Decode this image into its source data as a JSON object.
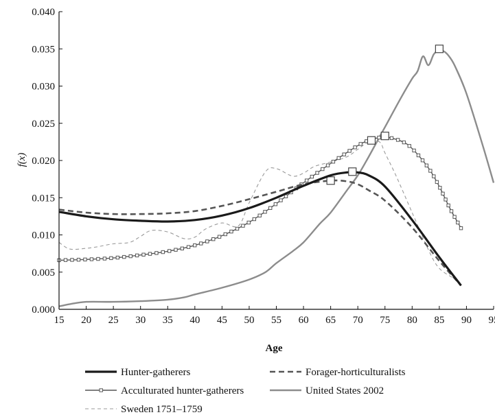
{
  "chart_data": {
    "type": "line",
    "title": "",
    "xlabel": "Age",
    "ylabel": "f(x)",
    "xlim": [
      15,
      95
    ],
    "ylim": [
      0,
      0.04
    ],
    "x_ticks": [
      "15",
      "20",
      "25",
      "30",
      "35",
      "40",
      "45",
      "50",
      "55",
      "60",
      "65",
      "70",
      "75",
      "80",
      "85",
      "90",
      "95"
    ],
    "y_ticks": [
      "0.000",
      "0.005",
      "0.010",
      "0.015",
      "0.020",
      "0.025",
      "0.030",
      "0.035",
      "0.040"
    ],
    "grid": false,
    "legend_position": "bottom",
    "series": [
      {
        "name": "Hunter-gatherers",
        "style": "solid-thick",
        "color": "#1a1a1a",
        "x": [
          15,
          20,
          25,
          30,
          35,
          40,
          45,
          50,
          55,
          60,
          65,
          68,
          70,
          72,
          75,
          80,
          85,
          89
        ],
        "y": [
          0.0131,
          0.0125,
          0.0121,
          0.0119,
          0.0118,
          0.012,
          0.0126,
          0.0136,
          0.015,
          0.0166,
          0.018,
          0.0184,
          0.0184,
          0.018,
          0.0165,
          0.012,
          0.007,
          0.0032
        ],
        "markers_x": [
          69
        ],
        "markers_y": [
          0.0185
        ]
      },
      {
        "name": "Forager-horticulturalists",
        "style": "dashed",
        "color": "#555555",
        "x": [
          15,
          20,
          25,
          30,
          35,
          40,
          45,
          50,
          55,
          60,
          65,
          68,
          70,
          72,
          75,
          80,
          85,
          89
        ],
        "y": [
          0.0134,
          0.013,
          0.0128,
          0.0128,
          0.0129,
          0.0132,
          0.0139,
          0.0148,
          0.0158,
          0.0168,
          0.0173,
          0.0172,
          0.0168,
          0.016,
          0.0146,
          0.011,
          0.0065,
          0.0032
        ],
        "markers_x": [
          65
        ],
        "markers_y": [
          0.0173
        ]
      },
      {
        "name": "Acculturated hunter-gatherers",
        "style": "square-markers",
        "color": "#555555",
        "x": [
          15,
          20,
          25,
          30,
          35,
          40,
          45,
          50,
          55,
          60,
          65,
          70,
          72,
          74,
          75,
          78,
          80,
          83,
          85,
          87,
          89
        ],
        "y": [
          0.0066,
          0.0067,
          0.0069,
          0.0073,
          0.0078,
          0.0086,
          0.0099,
          0.0117,
          0.0142,
          0.017,
          0.0196,
          0.022,
          0.0227,
          0.0231,
          0.0232,
          0.0226,
          0.0216,
          0.019,
          0.0165,
          0.0135,
          0.0109
        ],
        "markers_x": [
          72.5,
          75
        ],
        "markers_y": [
          0.0227,
          0.0233
        ]
      },
      {
        "name": "United States 2002",
        "style": "solid-gray",
        "color": "#8c8c8c",
        "x": [
          15,
          17,
          20,
          25,
          30,
          35,
          38,
          40,
          45,
          50,
          53,
          55,
          58,
          60,
          63,
          65,
          68,
          70,
          72,
          75,
          78,
          80,
          81,
          82,
          83,
          84,
          85,
          86,
          87,
          88,
          90,
          93,
          95
        ],
        "y": [
          0.0004,
          0.0007,
          0.001,
          0.001,
          0.0011,
          0.0013,
          0.0016,
          0.002,
          0.0029,
          0.004,
          0.005,
          0.0062,
          0.0078,
          0.009,
          0.0115,
          0.013,
          0.016,
          0.018,
          0.0205,
          0.0245,
          0.0285,
          0.031,
          0.032,
          0.034,
          0.0328,
          0.0343,
          0.0348,
          0.0346,
          0.0338,
          0.0325,
          0.029,
          0.022,
          0.017
        ],
        "markers_x": [
          85
        ],
        "markers_y": [
          0.035
        ]
      },
      {
        "name": "Sweden 1751–1759",
        "style": "thin-dashed",
        "color": "#9a9a9a",
        "x": [
          15,
          17,
          20,
          22,
          25,
          28,
          30,
          32,
          35,
          38,
          40,
          42,
          45,
          48,
          50,
          53,
          55,
          58,
          60,
          62,
          65,
          68,
          70,
          72,
          74,
          75,
          77,
          80,
          83,
          85,
          88,
          89
        ],
        "y": [
          0.009,
          0.0081,
          0.0082,
          0.0084,
          0.0088,
          0.009,
          0.0098,
          0.0106,
          0.0104,
          0.0095,
          0.0097,
          0.0108,
          0.0116,
          0.0112,
          0.0143,
          0.0185,
          0.0189,
          0.0179,
          0.0183,
          0.0192,
          0.0198,
          0.0205,
          0.0215,
          0.0225,
          0.0225,
          0.021,
          0.018,
          0.013,
          0.008,
          0.0055,
          0.004,
          0.0032
        ],
        "markers_x": [],
        "markers_y": []
      }
    ]
  }
}
